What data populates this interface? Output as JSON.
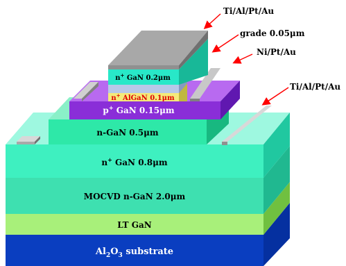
{
  "layers": {
    "substrate": {
      "label": "Al",
      "sub": "2",
      "mid": "O",
      "sub2": "3",
      "rest": " substrate"
    },
    "lt_gan": {
      "label": "LT GaN"
    },
    "mocvd": {
      "label": "MOCVD n-GaN  2.0μm"
    },
    "n_plus_gan": {
      "label": "n",
      "sup": "+",
      "rest": " GaN  0.8μm"
    },
    "n_gan": {
      "label": "n-GaN  0.5μm"
    },
    "p_plus_gan": {
      "label": "p",
      "sup": "+",
      "rest": " GaN  0.15μm"
    },
    "algan": {
      "label": "n",
      "sup": "+",
      "rest": " AlGaN 0.1μm"
    },
    "top_gan": {
      "label": "n",
      "sup": "+",
      "rest": " GaN 0.2μm"
    }
  },
  "callouts": {
    "top_contact": "Ti/Al/Pt/Au",
    "grade": "grade 0.05μm",
    "base_contact": "Ni/Pt/Au",
    "collector_contact": "Ti/Al/Pt/Au"
  },
  "colors": {
    "substrate": "#0a3ec0",
    "lt_gan": "#a8f07a",
    "mocvd": "#3ee0b0",
    "n_plus_gan": "#3ef0c0",
    "n_gan": "#2ee8a8",
    "p_plus_gan": "#8a2ed8",
    "algan": "#f4ea7a",
    "grade": "#b8c8e8",
    "top_gan": "#28e8c8",
    "metal": "#a8a8a8",
    "arrow": "#ff0000"
  }
}
